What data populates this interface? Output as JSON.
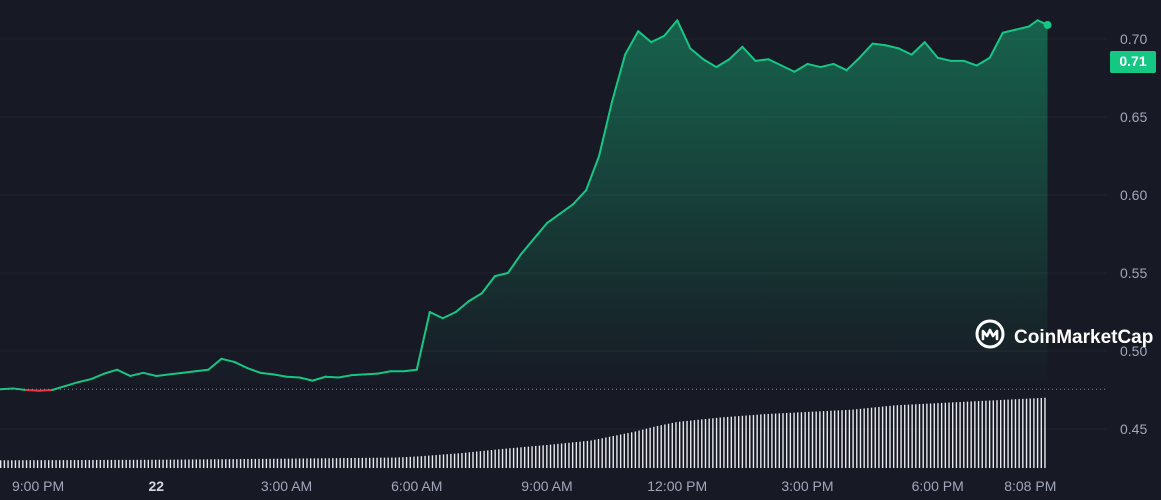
{
  "brand": {
    "name": "CoinMarketCap"
  },
  "colors": {
    "background": "#171924",
    "up": "#16c784",
    "down": "#ea3943",
    "grid": "#222531",
    "axis_text": "#a1a7bb",
    "volume": "#e8e9ee"
  },
  "chart_data": {
    "type": "area",
    "ylim": [
      0.425,
      0.725
    ],
    "y_ticks": [
      "0.45",
      "0.50",
      "0.55",
      "0.60",
      "0.65",
      "0.70"
    ],
    "x_ticks": [
      {
        "label": "9:00 PM",
        "t": 0.0
      },
      {
        "label": "22",
        "t": 3.0,
        "bold": true
      },
      {
        "label": "3:00 AM",
        "t": 6.0
      },
      {
        "label": "6:00 AM",
        "t": 9.0
      },
      {
        "label": "9:00 AM",
        "t": 12.0
      },
      {
        "label": "12:00 PM",
        "t": 15.0
      },
      {
        "label": "3:00 PM",
        "t": 18.0
      },
      {
        "label": "6:00 PM",
        "t": 21.0
      },
      {
        "label": "8:08 PM",
        "t": 23.133
      }
    ],
    "t_range": [
      -0.6,
      24.9
    ],
    "reference_price": 0.4755,
    "current_price": "0.71",
    "price": {
      "t": [
        -0.6,
        -0.3,
        0.0,
        0.3,
        0.6,
        0.9,
        1.2,
        1.5,
        1.8,
        2.1,
        2.4,
        2.7,
        3.0,
        3.3,
        3.6,
        3.9,
        4.2,
        4.5,
        4.8,
        5.1,
        5.4,
        5.7,
        6.0,
        6.3,
        6.6,
        6.9,
        7.2,
        7.5,
        7.8,
        8.1,
        8.4,
        8.7,
        9.0,
        9.3,
        9.6,
        9.9,
        10.2,
        10.5,
        10.8,
        11.1,
        11.4,
        11.7,
        12.0,
        12.3,
        12.6,
        12.9,
        13.2,
        13.5,
        13.8,
        14.1,
        14.4,
        14.7,
        15.0,
        15.3,
        15.6,
        15.9,
        16.2,
        16.5,
        16.8,
        17.1,
        17.4,
        17.7,
        18.0,
        18.3,
        18.6,
        18.9,
        19.2,
        19.5,
        19.8,
        20.1,
        20.4,
        20.7,
        21.0,
        21.3,
        21.6,
        21.9,
        22.2,
        22.5,
        22.8,
        23.1,
        23.3,
        23.53
      ],
      "v": [
        0.4755,
        0.476,
        0.475,
        0.4745,
        0.475,
        0.4775,
        0.48,
        0.482,
        0.4855,
        0.488,
        0.484,
        0.486,
        0.484,
        0.485,
        0.486,
        0.487,
        0.488,
        0.495,
        0.493,
        0.489,
        0.486,
        0.485,
        0.4835,
        0.483,
        0.481,
        0.4835,
        0.483,
        0.4845,
        0.485,
        0.4855,
        0.487,
        0.487,
        0.488,
        0.525,
        0.521,
        0.525,
        0.532,
        0.537,
        0.548,
        0.55,
        0.562,
        0.572,
        0.582,
        0.588,
        0.594,
        0.603,
        0.625,
        0.66,
        0.69,
        0.705,
        0.698,
        0.702,
        0.712,
        0.694,
        0.687,
        0.682,
        0.687,
        0.695,
        0.686,
        0.687,
        0.683,
        0.679,
        0.684,
        0.682,
        0.684,
        0.68,
        0.688,
        0.697,
        0.696,
        0.694,
        0.69,
        0.698,
        0.688,
        0.686,
        0.686,
        0.683,
        0.688,
        0.704,
        0.706,
        0.708,
        0.712,
        0.709
      ]
    },
    "volume": {
      "note": "relative 24h volume level (0-1)",
      "t": [
        -0.6,
        3.0,
        6.0,
        8.5,
        9.0,
        10.0,
        11.0,
        12.0,
        13.0,
        14.0,
        14.5,
        15.0,
        16.0,
        17.0,
        18.0,
        19.0,
        20.0,
        21.0,
        22.0,
        23.53
      ],
      "v": [
        0.07,
        0.075,
        0.085,
        0.095,
        0.105,
        0.135,
        0.175,
        0.21,
        0.25,
        0.33,
        0.38,
        0.42,
        0.46,
        0.49,
        0.51,
        0.53,
        0.57,
        0.59,
        0.61,
        0.64
      ]
    }
  }
}
